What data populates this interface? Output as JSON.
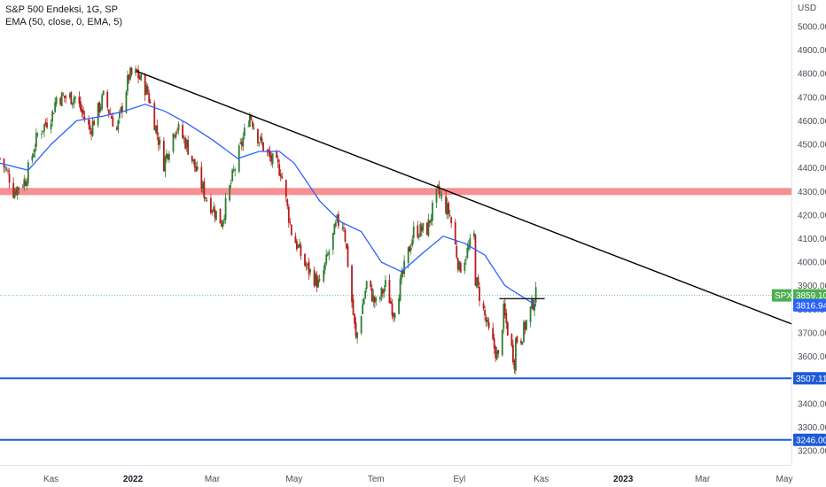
{
  "legend": {
    "title": "S&P 500 Endeksi, 1G, SP",
    "indicator": "EMA (50, close, 0, EMA, 5)"
  },
  "currency": "USD",
  "colors": {
    "up": "#26a69a",
    "down": "#ef5350",
    "candle_body_up": "#2e7d32",
    "candle_body_down": "#b71c1c",
    "ema": "#2962ff",
    "trendline": "#000000",
    "resistance_band": "#f77c80",
    "support_line": "#1e5ad8",
    "spx_tag": "#4caf50",
    "ema_tag": "#2962ff",
    "support_tag": "#1e5ad8"
  },
  "chart_data": {
    "type": "candlestick",
    "title": "S&P 500 Endeksi, 1G, SP",
    "ylim": [
      3150,
      5100
    ],
    "y_ticks": [
      3200,
      3300,
      3400,
      3500,
      3600,
      3700,
      3800,
      3900,
      4000,
      4100,
      4200,
      4300,
      4400,
      4500,
      4600,
      4700,
      4800,
      4900,
      5000
    ],
    "y_tick_labels": [
      "3200.00",
      "3300.00",
      "3400.00",
      "3500.00",
      "3600.00",
      "3700.00",
      "3800.00",
      "3900.00",
      "4000.00",
      "4100.00",
      "4200.00",
      "4300.00",
      "4400.00",
      "4500.00",
      "4600.00",
      "4700.00",
      "4800.00",
      "4900.00",
      "5000.00"
    ],
    "x_ticks": [
      {
        "label": "Kas",
        "date": "2021-11-01",
        "bold": false
      },
      {
        "label": "2022",
        "date": "2022-01-01",
        "bold": true
      },
      {
        "label": "Mar",
        "date": "2022-03-01",
        "bold": false
      },
      {
        "label": "May",
        "date": "2022-05-01",
        "bold": false
      },
      {
        "label": "Tem",
        "date": "2022-07-01",
        "bold": false
      },
      {
        "label": "Eyl",
        "date": "2022-09-01",
        "bold": false
      },
      {
        "label": "Kas",
        "date": "2022-11-01",
        "bold": false
      },
      {
        "label": "2023",
        "date": "2023-01-01",
        "bold": true
      },
      {
        "label": "Mar",
        "date": "2023-03-01",
        "bold": false
      },
      {
        "label": "May",
        "date": "2023-05-01",
        "bold": false
      }
    ],
    "x_range": [
      "2021-09-24",
      "2023-05-01"
    ],
    "price_path": [
      [
        "2021-09-24",
        4440
      ],
      [
        "2021-10-01",
        4360
      ],
      [
        "2021-10-04",
        4300
      ],
      [
        "2021-10-13",
        4350
      ],
      [
        "2021-10-22",
        4540
      ],
      [
        "2021-11-02",
        4630
      ],
      [
        "2021-11-05",
        4700
      ],
      [
        "2021-11-19",
        4700
      ],
      [
        "2021-11-30",
        4560
      ],
      [
        "2021-12-10",
        4700
      ],
      [
        "2021-12-20",
        4560
      ],
      [
        "2021-12-29",
        4790
      ],
      [
        "2022-01-04",
        4800
      ],
      [
        "2022-01-12",
        4720
      ],
      [
        "2022-01-24",
        4420
      ],
      [
        "2022-02-02",
        4580
      ],
      [
        "2022-02-10",
        4500
      ],
      [
        "2022-02-24",
        4280
      ],
      [
        "2022-03-08",
        4170
      ],
      [
        "2022-03-16",
        4360
      ],
      [
        "2022-03-29",
        4630
      ],
      [
        "2022-04-05",
        4520
      ],
      [
        "2022-04-13",
        4440
      ],
      [
        "2022-04-21",
        4390
      ],
      [
        "2022-04-29",
        4130
      ],
      [
        "2022-05-09",
        3990
      ],
      [
        "2022-05-20",
        3900
      ],
      [
        "2022-06-02",
        4170
      ],
      [
        "2022-06-07",
        4160
      ],
      [
        "2022-06-16",
        3670
      ],
      [
        "2022-06-24",
        3910
      ],
      [
        "2022-07-01",
        3820
      ],
      [
        "2022-07-08",
        3900
      ],
      [
        "2022-07-14",
        3790
      ],
      [
        "2022-07-29",
        4130
      ],
      [
        "2022-08-08",
        4140
      ],
      [
        "2022-08-16",
        4300
      ],
      [
        "2022-08-25",
        4200
      ],
      [
        "2022-09-01",
        3970
      ],
      [
        "2022-09-12",
        4110
      ],
      [
        "2022-09-13",
        3930
      ],
      [
        "2022-09-23",
        3700
      ],
      [
        "2022-09-30",
        3590
      ],
      [
        "2022-10-04",
        3790
      ],
      [
        "2022-10-12",
        3580
      ],
      [
        "2022-10-13",
        3670
      ],
      [
        "2022-10-17",
        3680
      ],
      [
        "2022-10-26",
        3830
      ],
      [
        "2022-10-28",
        3860
      ]
    ],
    "ema_path": [
      [
        "2021-09-24",
        4420
      ],
      [
        "2021-10-15",
        4390
      ],
      [
        "2021-11-01",
        4500
      ],
      [
        "2021-11-20",
        4600
      ],
      [
        "2021-12-10",
        4620
      ],
      [
        "2021-12-25",
        4640
      ],
      [
        "2022-01-10",
        4670
      ],
      [
        "2022-01-25",
        4640
      ],
      [
        "2022-02-10",
        4590
      ],
      [
        "2022-03-01",
        4520
      ],
      [
        "2022-03-20",
        4440
      ],
      [
        "2022-04-05",
        4470
      ],
      [
        "2022-04-20",
        4470
      ],
      [
        "2022-05-01",
        4420
      ],
      [
        "2022-05-20",
        4260
      ],
      [
        "2022-06-05",
        4170
      ],
      [
        "2022-06-20",
        4130
      ],
      [
        "2022-07-05",
        4000
      ],
      [
        "2022-07-20",
        3960
      ],
      [
        "2022-08-05",
        4040
      ],
      [
        "2022-08-20",
        4110
      ],
      [
        "2022-09-05",
        4080
      ],
      [
        "2022-09-20",
        4030
      ],
      [
        "2022-10-05",
        3900
      ],
      [
        "2022-10-28",
        3817
      ]
    ],
    "annotations": {
      "trendline": {
        "from": [
          "2022-01-04",
          4810
        ],
        "to": [
          "2023-05-01",
          3750
        ]
      },
      "resistance_zone": [
        4285,
        4315
      ],
      "local_high_line": {
        "from": [
          "2022-10-14",
          3845
        ],
        "to": [
          "2022-10-28",
          3845
        ]
      },
      "support_lines": [
        3507.11,
        3246.0
      ],
      "last_price_dotted": 3859.1
    },
    "price_tags": [
      {
        "label": "SPX",
        "value_text": "3859.10",
        "value": 3859.1
      },
      {
        "label": "",
        "value_text": "3816.94",
        "value": 3816.94
      },
      {
        "label": "",
        "value_text": "3507.11",
        "value": 3507.11
      },
      {
        "label": "",
        "value_text": "3246.00",
        "value": 3246.0
      }
    ],
    "series": [
      {
        "name": "S&P 500 Endeksi",
        "kind": "candles"
      },
      {
        "name": "EMA (50, close, 0, EMA, 5)",
        "kind": "line"
      }
    ]
  }
}
